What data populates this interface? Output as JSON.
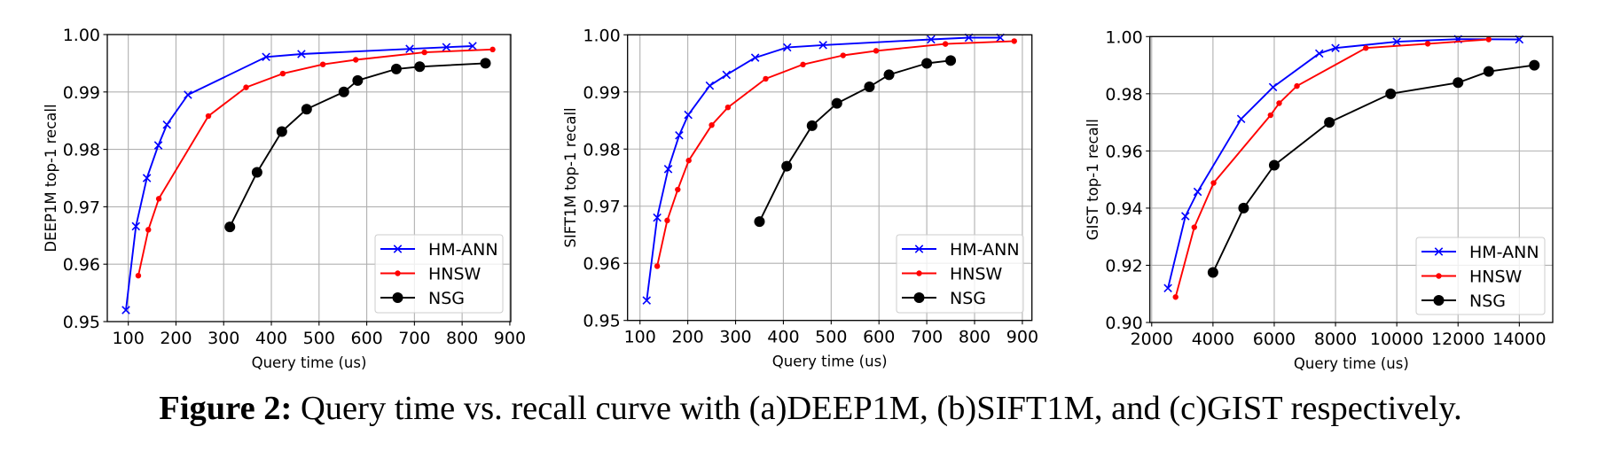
{
  "colors": {
    "HM-ANN": "#0000ff",
    "HNSW": "#ff0000",
    "NSG": "#000000",
    "grid": "#b0b0b0",
    "legend_border": "#cccccc"
  },
  "caption": {
    "label": "Figure 2:",
    "text": "Query time vs. recall curve with (a)DEEP1M, (b)SIFT1M, and (c)GIST respectively."
  },
  "chart_data": [
    {
      "type": "line",
      "title": "",
      "xlabel": "Query time (us)",
      "ylabel": "DEEP1M top-1 recall",
      "xlim": [
        56,
        902
      ],
      "ylim": [
        0.95,
        1.0
      ],
      "xticks": [
        100,
        200,
        300,
        400,
        500,
        600,
        700,
        800,
        900
      ],
      "xtick_labels": [
        "100",
        "200",
        "300",
        "400",
        "500",
        "600",
        "700",
        "800",
        "900"
      ],
      "yticks": [
        0.95,
        0.96,
        0.97,
        0.98,
        0.99,
        1.0
      ],
      "ytick_labels": [
        "0.95",
        "0.96",
        "0.97",
        "0.98",
        "0.99",
        "1.00"
      ],
      "grid": true,
      "legend_position": "lower-right",
      "series": [
        {
          "name": "HM-ANN",
          "marker": "x",
          "x": [
            95,
            116,
            139,
            163,
            181,
            225,
            389,
            463,
            690,
            767,
            822
          ],
          "y": [
            0.952,
            0.9666,
            0.975,
            0.9807,
            0.9843,
            0.9895,
            0.9961,
            0.9966,
            0.9975,
            0.9978,
            0.998
          ]
        },
        {
          "name": "HNSW",
          "marker": "dot-small",
          "x": [
            121,
            142,
            164,
            268,
            347,
            424,
            508,
            577,
            721,
            864
          ],
          "y": [
            0.958,
            0.966,
            0.9714,
            0.9858,
            0.9908,
            0.9932,
            0.9948,
            0.9956,
            0.9969,
            0.9974
          ]
        },
        {
          "name": "NSG",
          "marker": "dot-large",
          "x": [
            313,
            370,
            422,
            474,
            552,
            581,
            662,
            711,
            849
          ],
          "y": [
            0.9665,
            0.976,
            0.9831,
            0.987,
            0.99,
            0.992,
            0.994,
            0.9944,
            0.995
          ]
        }
      ]
    },
    {
      "type": "line",
      "title": "",
      "xlabel": "Query time (us)",
      "ylabel": "SIFT1M top-1 recall",
      "xlim": [
        74,
        920
      ],
      "ylim": [
        0.95,
        1.0
      ],
      "xticks": [
        100,
        200,
        300,
        400,
        500,
        600,
        700,
        800,
        900
      ],
      "xtick_labels": [
        "100",
        "200",
        "300",
        "400",
        "500",
        "600",
        "700",
        "800",
        "900"
      ],
      "yticks": [
        0.95,
        0.96,
        0.97,
        0.98,
        0.99,
        1.0
      ],
      "ytick_labels": [
        "0.95",
        "0.96",
        "0.97",
        "0.98",
        "0.99",
        "1.00"
      ],
      "grid": true,
      "legend_position": "lower-right",
      "series": [
        {
          "name": "HM-ANN",
          "marker": "x",
          "x": [
            114,
            136,
            159,
            182,
            201,
            246,
            281,
            341,
            408,
            483,
            709,
            788,
            854
          ],
          "y": [
            0.9535,
            0.968,
            0.9765,
            0.9824,
            0.986,
            0.9911,
            0.993,
            0.996,
            0.9978,
            0.9982,
            0.9992,
            0.9995,
            0.9995
          ]
        },
        {
          "name": "HNSW",
          "marker": "dot-small",
          "x": [
            136,
            157,
            179,
            202,
            250,
            284,
            363,
            441,
            525,
            594,
            739,
            883
          ],
          "y": [
            0.9595,
            0.9675,
            0.9729,
            0.978,
            0.9842,
            0.9873,
            0.9923,
            0.9948,
            0.9964,
            0.9972,
            0.9984,
            0.9989
          ]
        },
        {
          "name": "NSG",
          "marker": "dot-large",
          "x": [
            350,
            407,
            460,
            512,
            580,
            621,
            700,
            750
          ],
          "y": [
            0.9673,
            0.977,
            0.9841,
            0.988,
            0.9909,
            0.993,
            0.995,
            0.9955
          ]
        }
      ]
    },
    {
      "type": "line",
      "title": "",
      "xlabel": "Query time (us)",
      "ylabel": "GIST top-1 recall",
      "xlim": [
        1940,
        15090
      ],
      "ylim": [
        0.9,
        1.0
      ],
      "xticks": [
        2000,
        4000,
        6000,
        8000,
        10000,
        12000,
        14000
      ],
      "xtick_labels": [
        "2000",
        "4000",
        "6000",
        "8000",
        "10000",
        "12000",
        "14000"
      ],
      "yticks": [
        0.9,
        0.92,
        0.94,
        0.96,
        0.98,
        1.0
      ],
      "ytick_labels": [
        "0.90",
        "0.92",
        "0.94",
        "0.96",
        "0.98",
        "1.00"
      ],
      "grid": true,
      "legend_position": "lower-right",
      "series": [
        {
          "name": "HM-ANN",
          "marker": "x",
          "x": [
            2530,
            3100,
            3500,
            4920,
            5960,
            7470,
            8000,
            10000,
            12000,
            14000
          ],
          "y": [
            0.912,
            0.9372,
            0.9457,
            0.9712,
            0.9823,
            0.9941,
            0.996,
            0.9982,
            0.9991,
            0.999
          ]
        },
        {
          "name": "HNSW",
          "marker": "dot-small",
          "x": [
            2780,
            3390,
            4020,
            5880,
            6160,
            6740,
            8990,
            11010,
            13000
          ],
          "y": [
            0.9089,
            0.9333,
            0.9488,
            0.9725,
            0.9767,
            0.9827,
            0.996,
            0.9975,
            0.999
          ]
        },
        {
          "name": "NSG",
          "marker": "dot-large",
          "x": [
            4000,
            5000,
            6000,
            7800,
            9800,
            12000,
            13000,
            14490
          ],
          "y": [
            0.9175,
            0.94,
            0.955,
            0.97,
            0.98,
            0.9839,
            0.9878,
            0.99
          ]
        }
      ]
    }
  ]
}
